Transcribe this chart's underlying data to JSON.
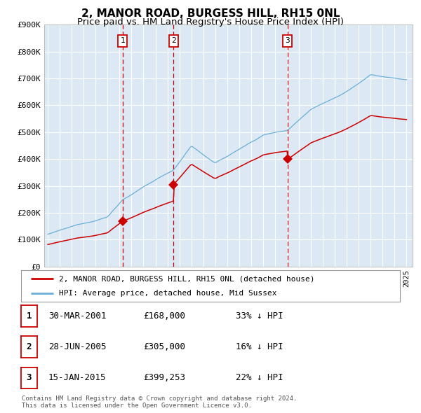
{
  "title": "2, MANOR ROAD, BURGESS HILL, RH15 0NL",
  "subtitle": "Price paid vs. HM Land Registry's House Price Index (HPI)",
  "ylim": [
    0,
    900000
  ],
  "yticks": [
    0,
    100000,
    200000,
    300000,
    400000,
    500000,
    600000,
    700000,
    800000,
    900000
  ],
  "ytick_labels": [
    "£0",
    "£100K",
    "£200K",
    "£300K",
    "£400K",
    "£500K",
    "£600K",
    "£700K",
    "£800K",
    "£900K"
  ],
  "plot_bg_color": "#dce9f5",
  "grid_color": "#ffffff",
  "hpi_color": "#6baed6",
  "price_color": "#cc0000",
  "sale_year_offsets": [
    6.25,
    10.5,
    20.04
  ],
  "sale_prices": [
    168000,
    305000,
    399253
  ],
  "legend_line1": "2, MANOR ROAD, BURGESS HILL, RH15 0NL (detached house)",
  "legend_line2": "HPI: Average price, detached house, Mid Sussex",
  "table_data": [
    [
      "1",
      "30-MAR-2001",
      "£168,000",
      "33% ↓ HPI"
    ],
    [
      "2",
      "28-JUN-2005",
      "£305,000",
      "16% ↓ HPI"
    ],
    [
      "3",
      "15-JAN-2015",
      "£399,253",
      "22% ↓ HPI"
    ]
  ],
  "footer": "Contains HM Land Registry data © Crown copyright and database right 2024.\nThis data is licensed under the Open Government Licence v3.0."
}
